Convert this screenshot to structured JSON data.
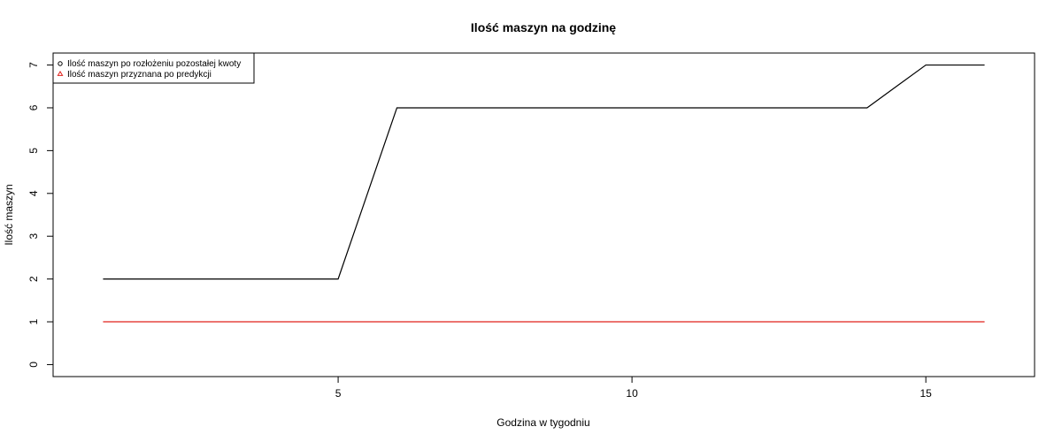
{
  "chart_data": {
    "type": "line",
    "title": "Ilość maszyn na godzinę",
    "xlabel": "Godzina w tygodniu",
    "ylabel": "Ilość maszyn",
    "x": [
      1,
      2,
      3,
      4,
      5,
      6,
      7,
      8,
      9,
      10,
      11,
      12,
      13,
      14,
      15,
      16
    ],
    "xlim": [
      0.15,
      16.85
    ],
    "ylim": [
      -0.28,
      7.28
    ],
    "xticks": [
      5,
      10,
      15
    ],
    "yticks": [
      0,
      1,
      2,
      3,
      4,
      5,
      6,
      7
    ],
    "grid": false,
    "legend_position": "top-left",
    "series": [
      {
        "name": "Ilość maszyn po rozłożeniu pozostałej kwoty",
        "color": "#000000",
        "marker": "circle",
        "values": [
          2,
          2,
          2,
          2,
          2,
          6,
          6,
          6,
          6,
          6,
          6,
          6,
          6,
          6,
          7,
          7
        ]
      },
      {
        "name": "Ilość maszyn przyznana po predykcji",
        "color": "#e0201b",
        "marker": "triangle",
        "values": [
          1,
          1,
          1,
          1,
          1,
          1,
          1,
          1,
          1,
          1,
          1,
          1,
          1,
          1,
          1,
          1
        ]
      }
    ]
  }
}
